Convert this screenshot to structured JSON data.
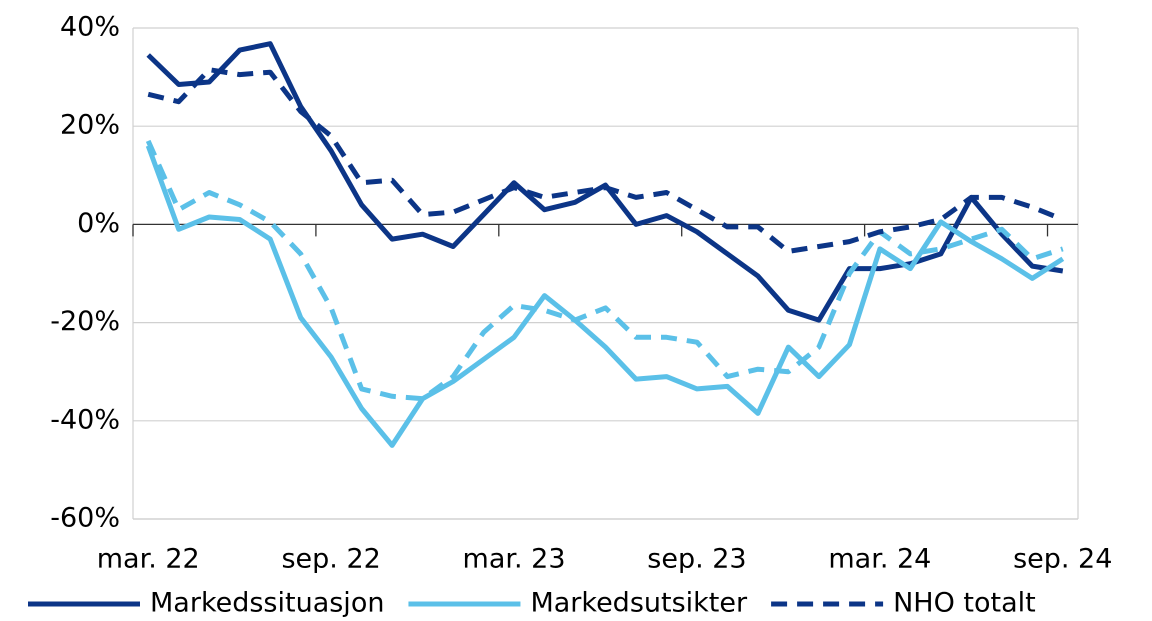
{
  "chart_data": {
    "type": "line",
    "categories": [
      "mar. 22",
      null,
      null,
      null,
      null,
      null,
      "sep. 22",
      null,
      null,
      null,
      null,
      null,
      "mar. 23",
      null,
      null,
      null,
      null,
      null,
      "sep. 23",
      null,
      null,
      null,
      null,
      null,
      "mar. 24",
      null,
      null,
      null,
      null,
      null,
      "sep. 24"
    ],
    "series": [
      {
        "name": "Markedssituasjon",
        "color": "#0c3587",
        "style": "solid",
        "values": [
          34.5,
          28.5,
          29,
          35.5,
          36.8,
          24,
          15,
          4,
          -3,
          -2,
          -4.5,
          2,
          8.5,
          3,
          4.5,
          8,
          0,
          1.8,
          -1.5,
          -6,
          -10.5,
          -17.5,
          -19.5,
          -9,
          -9,
          -8,
          -6,
          5.5,
          -2,
          -8.5,
          -9.5
        ]
      },
      {
        "name": "Markedsutsikter",
        "color": "#5bc0e8",
        "style": "solid",
        "values": [
          16,
          -1,
          1.5,
          1,
          -3,
          -19,
          -27,
          -37.5,
          -45,
          -35.5,
          -32,
          -27.5,
          -23,
          -14.5,
          -19.5,
          -25,
          -31.5,
          -31,
          -33.5,
          -33,
          -38.5,
          -25,
          -31,
          -24.5,
          -5,
          -9,
          0.5,
          -3.5,
          -7,
          -11,
          -7
        ]
      },
      {
        "color": "#5bc0e8",
        "style": "dashed",
        "values": [
          17,
          3,
          6.5,
          4,
          0.5,
          -6,
          -17,
          -33.5,
          -35,
          -35.5,
          -31,
          -22,
          -16.5,
          -17.5,
          -19.5,
          -17,
          -23,
          -23,
          -24,
          -31,
          -29.5,
          -30,
          -25,
          -10,
          -1.5,
          -6,
          -5,
          -3,
          -1,
          -7,
          -5
        ]
      },
      {
        "name": "NHO totalt",
        "color": "#0c3587",
        "style": "dashed",
        "values": [
          26.5,
          25,
          31.5,
          30.5,
          31,
          23,
          18,
          8.5,
          9,
          2,
          2.5,
          5,
          7.5,
          5.5,
          6.5,
          7.5,
          5.5,
          6.5,
          3,
          -0.5,
          -0.5,
          -5.5,
          -4.5,
          -3.5,
          -1.5,
          -0.5,
          1,
          5.5,
          5.5,
          3.5,
          1
        ]
      }
    ],
    "ylim": [
      -60,
      40
    ],
    "yticks": [
      {
        "value": -60,
        "label": "-60%"
      },
      {
        "value": -40,
        "label": "-40%"
      },
      {
        "value": -20,
        "label": "-20%"
      },
      {
        "value": 0,
        "label": "0%"
      },
      {
        "value": 20,
        "label": "20%"
      },
      {
        "value": 40,
        "label": "40%"
      }
    ],
    "grid": true,
    "legend": "bottom"
  }
}
